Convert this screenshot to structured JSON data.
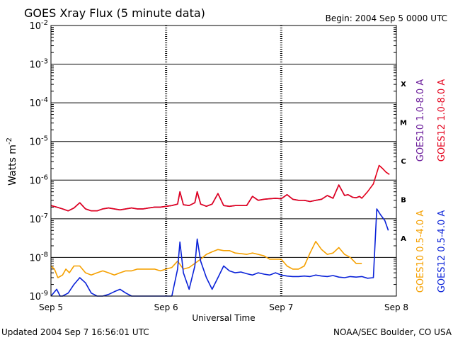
{
  "chart_data": {
    "type": "line",
    "title": "GOES Xray Flux (5 minute data)",
    "begin_label": "Begin:  2004 Sep 5 0000 UTC",
    "xlabel": "Universal Time",
    "ylabel": "Watts m",
    "ylabel_sup": "-2",
    "y_scale": "log",
    "ylim": [
      1e-09,
      0.01
    ],
    "y_ticks": [
      {
        "base": "10",
        "exp": "-2"
      },
      {
        "base": "10",
        "exp": "-3"
      },
      {
        "base": "10",
        "exp": "-4"
      },
      {
        "base": "10",
        "exp": "-5"
      },
      {
        "base": "10",
        "exp": "-6"
      },
      {
        "base": "10",
        "exp": "-7"
      },
      {
        "base": "10",
        "exp": "-8"
      },
      {
        "base": "10",
        "exp": "-9"
      }
    ],
    "x_unit": "days since 2004 Sep 5 0000 UTC",
    "xlim": [
      0,
      3
    ],
    "x_ticks": [
      "Sep 5",
      "Sep 6",
      "Sep 7",
      "Sep 8"
    ],
    "flare_classes": [
      "X",
      "M",
      "C",
      "B",
      "A"
    ],
    "grid": true,
    "series": [
      {
        "name": "GOES10 1.0-8.0 A",
        "color": "#6a1b9a",
        "x": [
          0,
          0.05,
          0.1,
          0.15,
          0.2,
          0.25,
          0.3,
          0.35,
          0.4,
          0.45,
          0.5,
          0.55,
          0.6,
          0.65,
          0.7,
          0.75,
          0.8,
          0.85,
          0.9,
          0.95,
          1.0,
          1.05,
          1.1,
          1.12,
          1.15,
          1.2,
          1.25,
          1.27,
          1.3,
          1.35,
          1.4,
          1.45,
          1.5,
          1.55,
          1.6,
          1.65,
          1.7,
          1.75,
          1.8,
          1.85,
          1.9,
          1.95,
          2.0,
          2.05,
          2.1,
          2.15,
          2.2,
          2.25,
          2.3,
          2.35,
          2.4,
          2.45,
          2.5,
          2.55,
          2.58,
          2.62,
          2.65,
          2.68,
          2.7
        ],
        "y": [
          2.2e-07,
          2e-07,
          1.8e-07,
          1.6e-07,
          1.9e-07,
          2.6e-07,
          1.8e-07,
          1.6e-07,
          1.6e-07,
          1.8e-07,
          1.9e-07,
          1.8e-07,
          1.7e-07,
          1.8e-07,
          1.9e-07,
          1.8e-07,
          1.8e-07,
          1.9e-07,
          2e-07,
          2e-07,
          2.1e-07,
          2.2e-07,
          2.4e-07,
          5e-07,
          2.3e-07,
          2.2e-07,
          2.6e-07,
          5e-07,
          2.4e-07,
          2.1e-07,
          2.4e-07,
          4.5e-07,
          2.2e-07,
          2.1e-07,
          2.2e-07,
          2.2e-07,
          2.2e-07,
          3.8e-07,
          3e-07,
          3.2e-07,
          3.3e-07,
          3.4e-07,
          3.3e-07,
          4.2e-07,
          3.2e-07,
          3e-07,
          3e-07,
          2.8e-07,
          3e-07,
          3.2e-07,
          4e-07,
          3.4e-07,
          7.5e-07,
          4e-07,
          4.2e-07,
          3.6e-07,
          3.5e-07,
          3.8e-07,
          3.4e-07
        ]
      },
      {
        "name": "GOES12 1.0-8.0 A",
        "color": "#e4001b",
        "x": [
          0,
          0.05,
          0.1,
          0.15,
          0.2,
          0.25,
          0.3,
          0.35,
          0.4,
          0.45,
          0.5,
          0.55,
          0.6,
          0.65,
          0.7,
          0.75,
          0.8,
          0.85,
          0.9,
          0.95,
          1.0,
          1.05,
          1.1,
          1.12,
          1.15,
          1.2,
          1.25,
          1.27,
          1.3,
          1.35,
          1.4,
          1.45,
          1.5,
          1.55,
          1.6,
          1.65,
          1.7,
          1.75,
          1.8,
          1.85,
          1.9,
          1.95,
          2.0,
          2.05,
          2.1,
          2.15,
          2.2,
          2.25,
          2.3,
          2.35,
          2.4,
          2.45,
          2.5,
          2.55,
          2.58,
          2.62,
          2.65,
          2.68,
          2.7,
          2.75,
          2.8,
          2.85,
          2.88,
          2.91,
          2.94
        ],
        "y": [
          2.2e-07,
          2e-07,
          1.8e-07,
          1.6e-07,
          1.9e-07,
          2.6e-07,
          1.8e-07,
          1.6e-07,
          1.6e-07,
          1.8e-07,
          1.9e-07,
          1.8e-07,
          1.7e-07,
          1.8e-07,
          1.9e-07,
          1.8e-07,
          1.8e-07,
          1.9e-07,
          2e-07,
          2e-07,
          2.1e-07,
          2.2e-07,
          2.4e-07,
          5e-07,
          2.3e-07,
          2.2e-07,
          2.6e-07,
          5e-07,
          2.4e-07,
          2.1e-07,
          2.4e-07,
          4.5e-07,
          2.2e-07,
          2.1e-07,
          2.2e-07,
          2.2e-07,
          2.2e-07,
          3.8e-07,
          3e-07,
          3.2e-07,
          3.3e-07,
          3.4e-07,
          3.3e-07,
          4.2e-07,
          3.2e-07,
          3e-07,
          3e-07,
          2.8e-07,
          3e-07,
          3.2e-07,
          4e-07,
          3.4e-07,
          7.5e-07,
          4e-07,
          4.2e-07,
          3.6e-07,
          3.5e-07,
          3.8e-07,
          3.4e-07,
          5e-07,
          8e-07,
          2.4e-06,
          2e-06,
          1.6e-06,
          1.4e-06
        ]
      },
      {
        "name": "GOES10 0.5-4.0 A",
        "color": "#f5a000",
        "x": [
          0,
          0.03,
          0.06,
          0.1,
          0.13,
          0.16,
          0.2,
          0.25,
          0.3,
          0.35,
          0.4,
          0.45,
          0.5,
          0.55,
          0.6,
          0.65,
          0.7,
          0.75,
          0.8,
          0.85,
          0.9,
          0.95,
          1.0,
          1.05,
          1.1,
          1.15,
          1.2,
          1.25,
          1.3,
          1.35,
          1.4,
          1.45,
          1.5,
          1.55,
          1.6,
          1.65,
          1.7,
          1.75,
          1.8,
          1.85,
          1.9,
          1.95,
          2.0,
          2.05,
          2.1,
          2.15,
          2.2,
          2.25,
          2.3,
          2.35,
          2.4,
          2.45,
          2.5,
          2.55,
          2.6,
          2.65,
          2.7
        ],
        "y": [
          6e-09,
          5e-09,
          3e-09,
          3.5e-09,
          5e-09,
          4e-09,
          6e-09,
          6e-09,
          4e-09,
          3.5e-09,
          4e-09,
          4.5e-09,
          4e-09,
          3.5e-09,
          4e-09,
          4.5e-09,
          4.5e-09,
          5e-09,
          5e-09,
          5e-09,
          5e-09,
          4.5e-09,
          5e-09,
          5.5e-09,
          8e-09,
          5e-09,
          5.5e-09,
          7e-09,
          9e-09,
          1.2e-08,
          1.4e-08,
          1.6e-08,
          1.5e-08,
          1.5e-08,
          1.3e-08,
          1.25e-08,
          1.2e-08,
          1.3e-08,
          1.2e-08,
          1.1e-08,
          9e-09,
          9e-09,
          9e-09,
          6e-09,
          5e-09,
          5e-09,
          6e-09,
          1.3e-08,
          2.6e-08,
          1.6e-08,
          1.2e-08,
          1.3e-08,
          1.8e-08,
          1.2e-08,
          1e-08,
          7e-09,
          7e-09
        ]
      },
      {
        "name": "GOES12 0.5-4.0 A",
        "color": "#0a22d8",
        "x": [
          0,
          0.05,
          0.08,
          0.1,
          0.15,
          0.2,
          0.25,
          0.3,
          0.35,
          0.4,
          0.45,
          0.5,
          0.55,
          0.6,
          0.65,
          0.7,
          0.75,
          0.8,
          0.85,
          0.9,
          0.95,
          1.0,
          1.05,
          1.1,
          1.12,
          1.15,
          1.2,
          1.25,
          1.27,
          1.3,
          1.35,
          1.4,
          1.45,
          1.5,
          1.55,
          1.6,
          1.65,
          1.7,
          1.75,
          1.8,
          1.85,
          1.9,
          1.95,
          2.0,
          2.05,
          2.1,
          2.15,
          2.2,
          2.25,
          2.3,
          2.35,
          2.4,
          2.45,
          2.5,
          2.55,
          2.6,
          2.65,
          2.7,
          2.75,
          2.8,
          2.83,
          2.86,
          2.9,
          2.93
        ],
        "y": [
          1e-09,
          1.5e-09,
          1e-09,
          1e-09,
          1.2e-09,
          2e-09,
          3e-09,
          2.2e-09,
          1.2e-09,
          1e-09,
          1e-09,
          1.1e-09,
          1.3e-09,
          1.5e-09,
          1.2e-09,
          1e-09,
          1e-09,
          1e-09,
          1e-09,
          1e-09,
          1e-09,
          1e-09,
          1e-09,
          5e-09,
          2.5e-08,
          4e-09,
          1.5e-09,
          6e-09,
          3e-08,
          8e-09,
          3e-09,
          1.5e-09,
          3e-09,
          6e-09,
          4.5e-09,
          4e-09,
          4.2e-09,
          3.8e-09,
          3.5e-09,
          4e-09,
          3.7e-09,
          3.5e-09,
          4e-09,
          3.5e-09,
          3.3e-09,
          3.2e-09,
          3.2e-09,
          3.3e-09,
          3.2e-09,
          3.5e-09,
          3.3e-09,
          3.2e-09,
          3.4e-09,
          3.1e-09,
          3e-09,
          3.2e-09,
          3.1e-09,
          3.2e-09,
          2.9e-09,
          3e-09,
          1.8e-07,
          1.3e-07,
          9e-08,
          5e-08
        ]
      }
    ]
  },
  "footer": {
    "updated": "Updated 2004 Sep  7 16:56:01 UTC",
    "source": "NOAA/SEC Boulder, CO USA"
  }
}
